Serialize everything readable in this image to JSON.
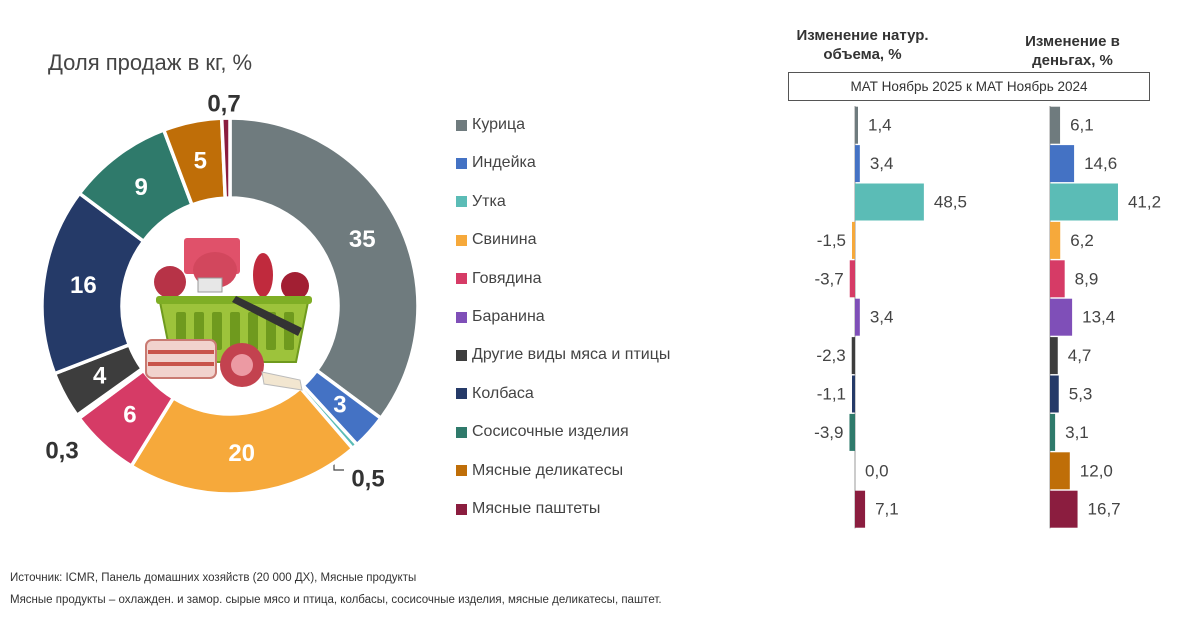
{
  "footnote_source": "Источник: ICMR, Панель домашних хозяйств (20 000 ДХ), Мясные продукты",
  "footnote_definition": "Мясные продукты – охлажден. и замор. сырые мясо и птица, колбасы, сосисочные изделия, мясные деликатесы, паштет.",
  "chart_data": [
    {
      "type": "pie",
      "title": "Доля продаж в кг, %",
      "donut": true,
      "center_image": "meat-basket-illustration",
      "slices": [
        {
          "label": "Курица",
          "value": 35,
          "value_label": "35",
          "color": "#6f7b7e"
        },
        {
          "label": "Индейка",
          "value": 3,
          "value_label": "3",
          "color": "#4472c4"
        },
        {
          "label": "Утка",
          "value": 0.5,
          "value_label": "0,5",
          "color": "#5bbcb6"
        },
        {
          "label": "Свинина",
          "value": 20,
          "value_label": "20",
          "color": "#f6a93b"
        },
        {
          "label": "Говядина",
          "value": 6,
          "value_label": "6",
          "color": "#d63b66"
        },
        {
          "label": "Баранина",
          "value": 0.3,
          "value_label": "0,3",
          "color": "#7f4fb8"
        },
        {
          "label": "Другие виды мяса и птицы",
          "value": 4,
          "value_label": "4",
          "color": "#3d3d3d"
        },
        {
          "label": "Колбаса",
          "value": 16,
          "value_label": "16",
          "color": "#253a68"
        },
        {
          "label": "Сосисочные изделия",
          "value": 9,
          "value_label": "9",
          "color": "#2f7a6b"
        },
        {
          "label": "Мясные деликатесы",
          "value": 5,
          "value_label": "5",
          "color": "#bf6e08"
        },
        {
          "label": "Мясные паштеты",
          "value": 0.7,
          "value_label": "0,7",
          "color": "#8b1d3f"
        }
      ]
    },
    {
      "type": "bar",
      "orientation": "horizontal",
      "title": "Изменение  натур. объема, %",
      "subtitle": "МАТ Ноябрь 2025 к МАТ Ноябрь 2024",
      "categories": [
        "Курица",
        "Индейка",
        "Утка",
        "Свинина",
        "Говядина",
        "Баранина",
        "Другие виды мяса и птицы",
        "Колбаса",
        "Сосисочные изделия",
        "Мясные деликатесы",
        "Мясные паштеты"
      ],
      "values": [
        1.4,
        3.4,
        48.5,
        -1.5,
        -3.7,
        3.4,
        -2.3,
        -1.1,
        -3.9,
        0.0,
        7.1
      ],
      "value_labels": [
        "1,4",
        "3,4",
        "48,5",
        "-1,5",
        "-3,7",
        "3,4",
        "-2,3",
        "-1,1",
        "-3,9",
        "0,0",
        "7,1"
      ]
    },
    {
      "type": "bar",
      "orientation": "horizontal",
      "title": "Изменение в деньгах, %",
      "subtitle": "МАТ Ноябрь 2025 к МАТ Ноябрь 2024",
      "categories": [
        "Курица",
        "Индейка",
        "Утка",
        "Свинина",
        "Говядина",
        "Баранина",
        "Другие виды мяса и птицы",
        "Колбаса",
        "Сосисочные изделия",
        "Мясные деликатесы",
        "Мясные паштеты"
      ],
      "values": [
        6.1,
        14.6,
        41.2,
        6.2,
        8.9,
        13.4,
        4.7,
        5.3,
        3.1,
        12.0,
        16.7
      ],
      "value_labels": [
        "6,1",
        "14,6",
        "41,2",
        "6,2",
        "8,9",
        "13,4",
        "4,7",
        "5,3",
        "3,1",
        "12,0",
        "16,7"
      ]
    }
  ]
}
